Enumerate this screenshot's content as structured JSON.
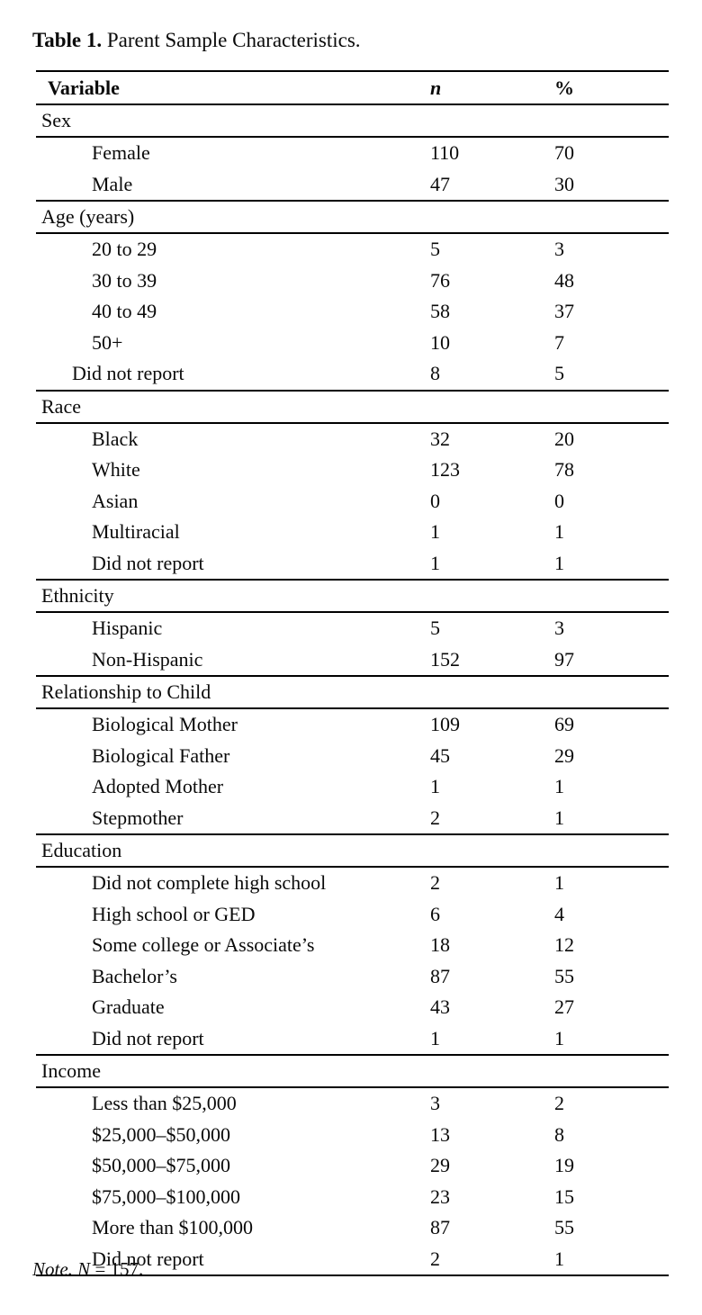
{
  "title": {
    "label": "Table 1.",
    "text": " Parent Sample Characteristics."
  },
  "table": {
    "columns": [
      "Variable",
      "n",
      "%"
    ],
    "sections": [
      {
        "name": "Sex",
        "rows": [
          {
            "label": "Female",
            "n": "110",
            "pct": "70"
          },
          {
            "label": "Male",
            "n": "47",
            "pct": "30"
          }
        ]
      },
      {
        "name": "Age (years)",
        "rows": [
          {
            "label": "20 to 29",
            "n": "5",
            "pct": "3"
          },
          {
            "label": "30 to 39",
            "n": "76",
            "pct": "48"
          },
          {
            "label": "40 to 49",
            "n": "58",
            "pct": "37"
          },
          {
            "label": "50+",
            "n": "10",
            "pct": "7"
          },
          {
            "label": "Did not report",
            "n": "8",
            "pct": "5",
            "indent": "small"
          }
        ]
      },
      {
        "name": "Race",
        "rows": [
          {
            "label": "Black",
            "n": "32",
            "pct": "20"
          },
          {
            "label": "White",
            "n": "123",
            "pct": "78"
          },
          {
            "label": "Asian",
            "n": "0",
            "pct": "0"
          },
          {
            "label": "Multiracial",
            "n": "1",
            "pct": "1"
          },
          {
            "label": "Did not report",
            "n": "1",
            "pct": "1"
          }
        ]
      },
      {
        "name": "Ethnicity",
        "rows": [
          {
            "label": "Hispanic",
            "n": "5",
            "pct": "3"
          },
          {
            "label": "Non-Hispanic",
            "n": "152",
            "pct": "97"
          }
        ]
      },
      {
        "name": "Relationship to Child",
        "rows": [
          {
            "label": "Biological Mother",
            "n": "109",
            "pct": "69"
          },
          {
            "label": "Biological Father",
            "n": "45",
            "pct": "29"
          },
          {
            "label": "Adopted Mother",
            "n": "1",
            "pct": "1"
          },
          {
            "label": "Stepmother",
            "n": "2",
            "pct": "1"
          }
        ]
      },
      {
        "name": "Education",
        "rows": [
          {
            "label": "Did not complete high school",
            "n": "2",
            "pct": "1"
          },
          {
            "label": "High school or GED",
            "n": "6",
            "pct": "4"
          },
          {
            "label": "Some college or Associate’s",
            "n": "18",
            "pct": "12"
          },
          {
            "label": "Bachelor’s",
            "n": "87",
            "pct": "55"
          },
          {
            "label": "Graduate",
            "n": "43",
            "pct": "27"
          },
          {
            "label": "Did not report",
            "n": "1",
            "pct": "1"
          }
        ]
      },
      {
        "name": "Income",
        "rows": [
          {
            "label": "Less than $25,000",
            "n": "3",
            "pct": "2"
          },
          {
            "label": "$25,000–$50,000",
            "n": "13",
            "pct": "8"
          },
          {
            "label": "$50,000–$75,000",
            "n": "29",
            "pct": "19"
          },
          {
            "label": "$75,000–$100,000",
            "n": "23",
            "pct": "15"
          },
          {
            "label": "More than $100,000",
            "n": "87",
            "pct": "55"
          },
          {
            "label": "Did not report",
            "n": "2",
            "pct": "1"
          }
        ]
      }
    ]
  },
  "note": {
    "prefix": "Note. ",
    "n_symbol": "N",
    "rest": " = 157."
  }
}
